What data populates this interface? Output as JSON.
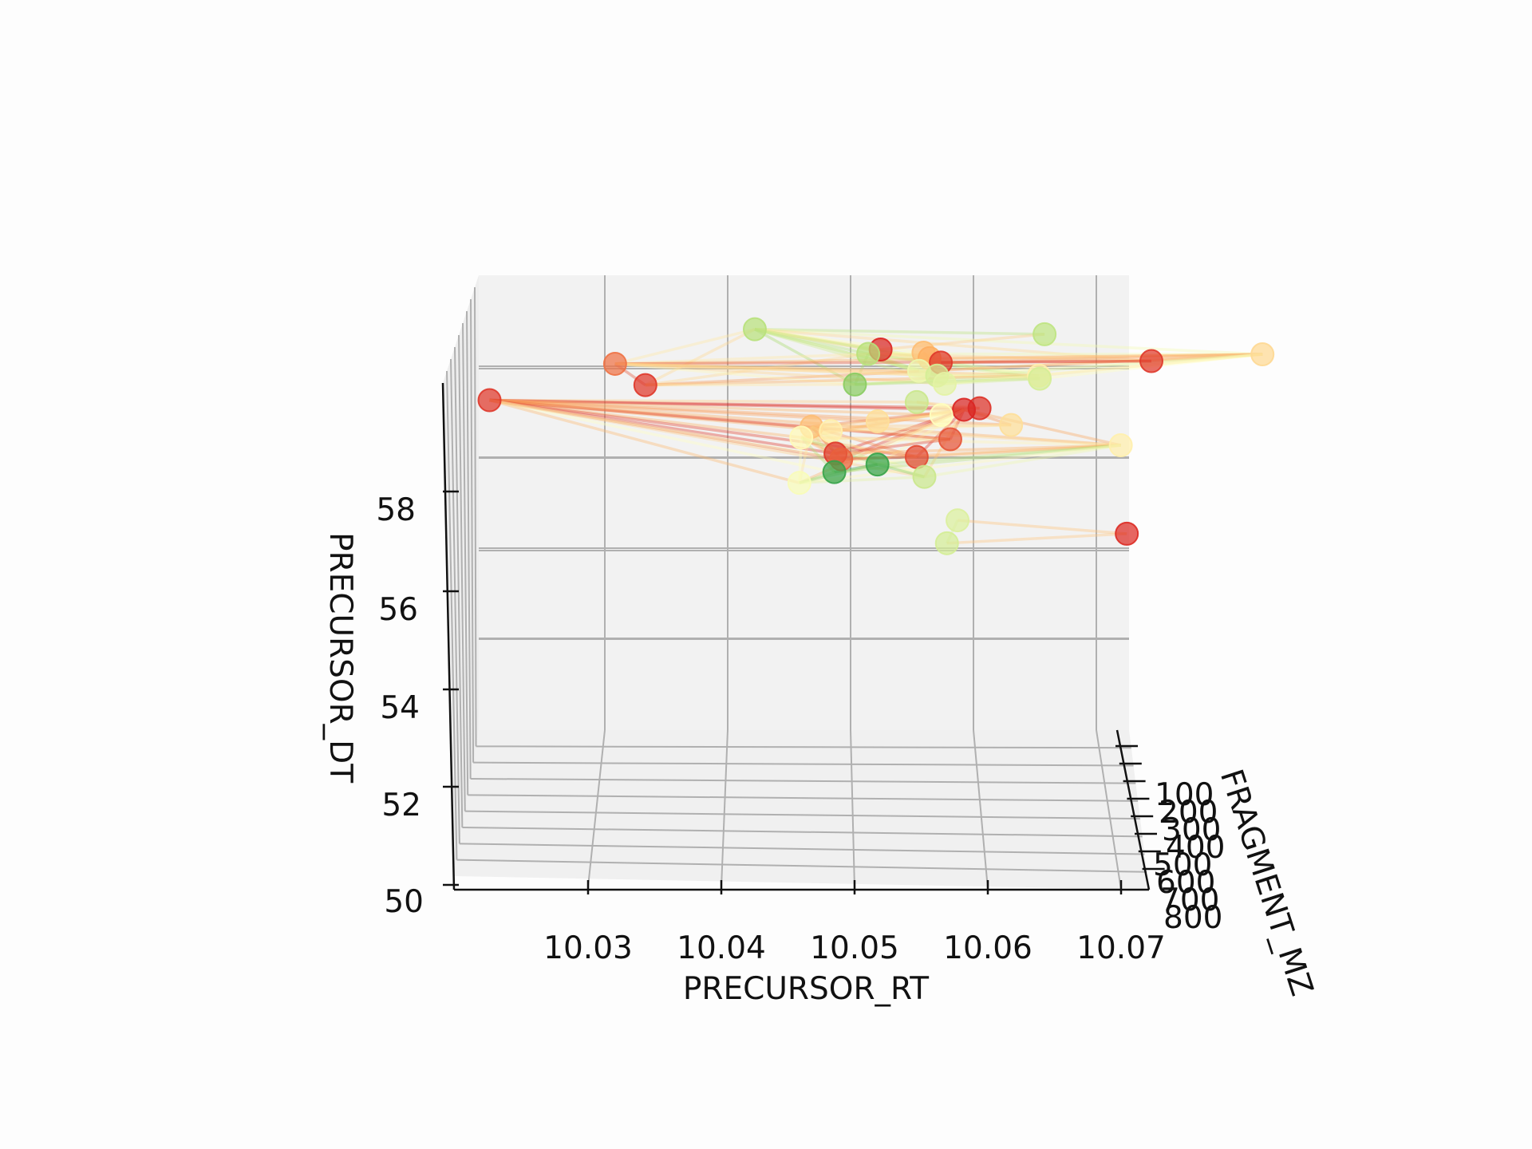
{
  "chart_data": {
    "type": "scatter",
    "projection": "3d",
    "title": "",
    "axes": {
      "x": {
        "label": "PRECURSOR_RT",
        "ticks": [
          "10.03",
          "10.04",
          "10.05",
          "10.06",
          "10.07"
        ],
        "lim": [
          10.02,
          10.072
        ]
      },
      "y": {
        "label": "FRAGMENT_MZ",
        "ticks": [
          "100",
          "200",
          "300",
          "400",
          "500",
          "600",
          "700",
          "800"
        ],
        "lim": [
          0,
          850
        ]
      },
      "z": {
        "label": "PRECURSOR_DT",
        "ticks": [
          "50",
          "52",
          "54",
          "56",
          "58"
        ],
        "lim": [
          50,
          60
        ]
      }
    },
    "grid": true,
    "colormap": [
      "#1a9641",
      "#a6d96a",
      "#ffffbf",
      "#fdae61",
      "#d7191c"
    ],
    "groups": [
      {
        "points": [
          {
            "rt": 10.044,
            "dt": 59.3,
            "mz": 300,
            "c": 0.3
          },
          {
            "rt": 10.066,
            "dt": 59.2,
            "mz": 320,
            "c": 0.32
          },
          {
            "rt": 10.0535,
            "dt": 58.9,
            "mz": 400,
            "c": 0.98
          },
          {
            "rt": 10.0525,
            "dt": 58.85,
            "mz": 500,
            "c": 0.3
          },
          {
            "rt": 10.0568,
            "dt": 58.8,
            "mz": 330,
            "c": 0.7
          },
          {
            "rt": 10.0571,
            "dt": 58.8,
            "mz": 600,
            "c": 0.75
          },
          {
            "rt": 10.0825,
            "dt": 58.8,
            "mz": 410,
            "c": 0.62
          },
          {
            "rt": 10.0579,
            "dt": 58.75,
            "mz": 700,
            "c": 0.95
          },
          {
            "rt": 10.074,
            "dt": 58.7,
            "mz": 520,
            "c": 0.95
          },
          {
            "rt": 10.0335,
            "dt": 58.45,
            "mz": 100,
            "c": 0.85
          },
          {
            "rt": 10.0564,
            "dt": 58.45,
            "mz": 440,
            "c": 0.45
          },
          {
            "rt": 10.0577,
            "dt": 58.4,
            "mz": 560,
            "c": 0.38
          },
          {
            "rt": 10.0655,
            "dt": 58.35,
            "mz": 450,
            "c": 0.55
          },
          {
            "rt": 10.0354,
            "dt": 58.3,
            "mz": 800,
            "c": 0.95
          },
          {
            "rt": 10.0514,
            "dt": 58.25,
            "mz": 660,
            "c": 0.2
          },
          {
            "rt": 10.0656,
            "dt": 58.25,
            "mz": 380,
            "c": 0.38
          },
          {
            "rt": 10.0583,
            "dt": 58.2,
            "mz": 520,
            "c": 0.42
          }
        ]
      },
      {
        "points": [
          {
            "rt": 10.0239,
            "dt": 57.7,
            "mz": 210,
            "c": 0.95
          },
          {
            "rt": 10.0609,
            "dt": 57.7,
            "mz": 600,
            "c": 0.96
          },
          {
            "rt": 10.0563,
            "dt": 57.7,
            "mz": 300,
            "c": 0.35
          },
          {
            "rt": 10.0598,
            "dt": 57.6,
            "mz": 450,
            "c": 0.98
          },
          {
            "rt": 10.058,
            "dt": 57.55,
            "mz": 600,
            "c": 0.5
          },
          {
            "rt": 10.0533,
            "dt": 57.3,
            "mz": 350,
            "c": 0.6
          },
          {
            "rt": 10.0482,
            "dt": 57.25,
            "mz": 500,
            "c": 0.7
          },
          {
            "rt": 10.0634,
            "dt": 57.25,
            "mz": 420,
            "c": 0.6
          },
          {
            "rt": 10.0496,
            "dt": 57.2,
            "mz": 600,
            "c": 0.55
          },
          {
            "rt": 10.0473,
            "dt": 57.1,
            "mz": 700,
            "c": 0.52
          },
          {
            "rt": 10.0587,
            "dt": 57.0,
            "mz": 560,
            "c": 0.9
          },
          {
            "rt": 10.0499,
            "dt": 56.75,
            "mz": 700,
            "c": 0.95
          },
          {
            "rt": 10.0718,
            "dt": 56.75,
            "mz": 300,
            "c": 0.55
          },
          {
            "rt": 10.0503,
            "dt": 56.65,
            "mz": 760,
            "c": 0.88
          },
          {
            "rt": 10.0561,
            "dt": 56.65,
            "mz": 650,
            "c": 0.92
          },
          {
            "rt": 10.0531,
            "dt": 56.5,
            "mz": 680,
            "c": 0.05
          },
          {
            "rt": 10.0498,
            "dt": 56.35,
            "mz": 720,
            "c": 0.05
          },
          {
            "rt": 10.0471,
            "dt": 56.15,
            "mz": 800,
            "c": 0.48
          },
          {
            "rt": 10.0567,
            "dt": 56.2,
            "mz": 620,
            "c": 0.35
          }
        ]
      },
      {
        "points": [
          {
            "rt": 10.0594,
            "dt": 55.1,
            "mz": 300,
            "c": 0.4
          },
          {
            "rt": 10.0722,
            "dt": 54.85,
            "mz": 400,
            "c": 0.97
          },
          {
            "rt": 10.0584,
            "dt": 54.75,
            "mz": 640,
            "c": 0.38
          }
        ]
      }
    ]
  }
}
